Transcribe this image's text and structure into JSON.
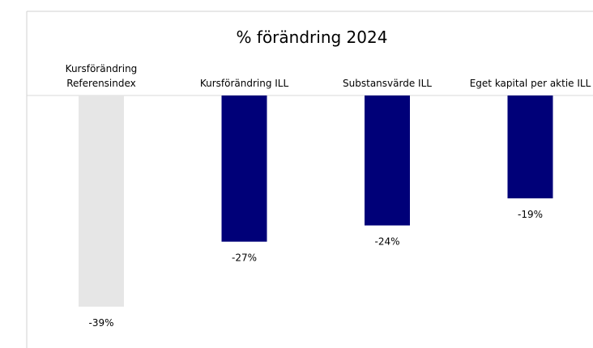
{
  "chart_data": {
    "type": "bar",
    "title": "% förändring 2024",
    "categories": [
      "Kursförändring\nReferensindex",
      "Kursförändring ILL",
      "Substansvärde ILL",
      "Eget kapital per aktie ILL"
    ],
    "values": [
      -39,
      -27,
      -24,
      -19
    ],
    "value_labels": [
      "-39%",
      "-27%",
      "-24%",
      "-19%"
    ],
    "colors": [
      "#e6e6e6",
      "#000078",
      "#000078",
      "#000078"
    ]
  }
}
